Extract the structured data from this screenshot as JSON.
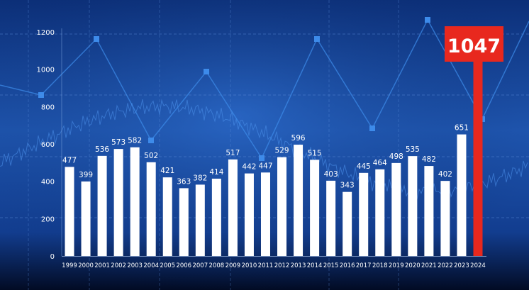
{
  "chart_data": {
    "type": "bar",
    "categories": [
      "1999",
      "2000",
      "2001",
      "2002",
      "2003",
      "2004",
      "2005",
      "2006",
      "2007",
      "2008",
      "2009",
      "2010",
      "2011",
      "2012",
      "2013",
      "2014",
      "2015",
      "2016",
      "2017",
      "2018",
      "2019",
      "2020",
      "2021",
      "2022",
      "2023",
      "2024"
    ],
    "values": [
      477,
      399,
      536,
      573,
      582,
      502,
      421,
      363,
      382,
      414,
      517,
      442,
      447,
      529,
      596,
      515,
      403,
      343,
      445,
      464,
      498,
      535,
      482,
      402,
      651,
      1047
    ],
    "value_labels": [
      "477",
      "399",
      "536",
      "573",
      "582",
      "502",
      "421",
      "363",
      "382",
      "414",
      "517",
      "442",
      "447",
      "529",
      "596",
      "515",
      "403",
      "343",
      "445",
      "464",
      "498",
      "535",
      "482",
      "402",
      "651",
      "1047"
    ],
    "yticks": [
      "0",
      "200",
      "400",
      "600",
      "800",
      "1000",
      "1200"
    ],
    "ylim": [
      0,
      1200
    ],
    "grid": true,
    "highlight": {
      "category": "2024",
      "label": "1047",
      "color": "#e8281e"
    },
    "colors": {
      "bar": "#ffffff",
      "background_dark": "#061a4a",
      "background_light": "#1f56b0",
      "accent_line": "#3d8bea"
    }
  }
}
